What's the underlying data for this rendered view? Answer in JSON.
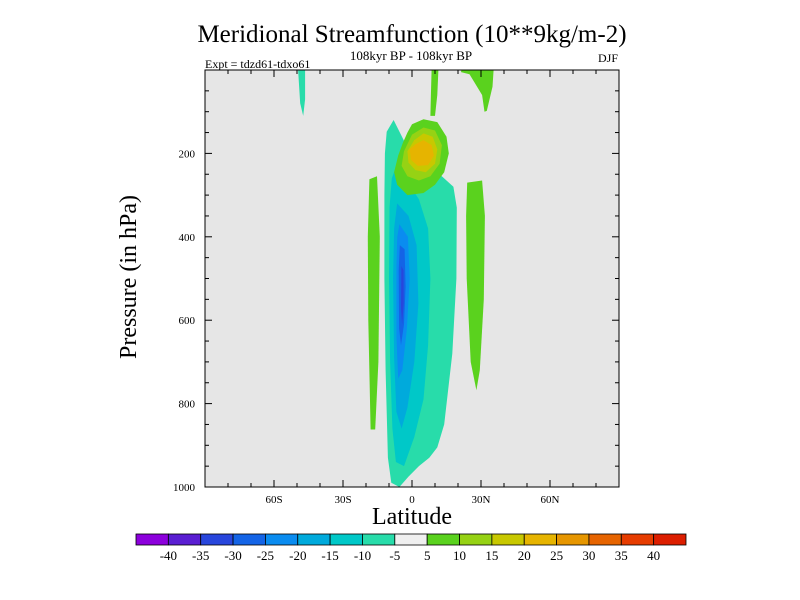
{
  "chart_data": {
    "type": "contour",
    "title": "Meridional Streamfunction (10**9kg/m-2)",
    "subtitle": "108kyr BP - 108kyr BP",
    "experiment_label": "Expt = tdzd61-tdxo61",
    "season": "DJF",
    "xlabel": "Latitude",
    "ylabel": "Pressure (in hPa)",
    "xlim": [
      -90,
      90
    ],
    "ylim": [
      1000,
      0
    ],
    "x_ticks": [
      {
        "value": -60,
        "label": "60S"
      },
      {
        "value": -30,
        "label": "30S"
      },
      {
        "value": 0,
        "label": "0"
      },
      {
        "value": 30,
        "label": "30N"
      },
      {
        "value": 60,
        "label": "60N"
      }
    ],
    "y_ticks": [
      {
        "value": 200,
        "label": "200"
      },
      {
        "value": 400,
        "label": "400"
      },
      {
        "value": 600,
        "label": "600"
      },
      {
        "value": 800,
        "label": "800"
      },
      {
        "value": 1000,
        "label": "1000"
      }
    ],
    "levels": [
      -40,
      -35,
      -30,
      -25,
      -20,
      -15,
      -10,
      -5,
      5,
      10,
      15,
      20,
      25,
      30,
      35,
      40
    ],
    "colorbar_labels": [
      "-40",
      "-35",
      "-30",
      "-25",
      "-20",
      "-15",
      "-10",
      "-5",
      "5",
      "10",
      "15",
      "20",
      "25",
      "30",
      "35",
      "40"
    ],
    "colorbar_colors": [
      "#8c00dc",
      "#5a1ed2",
      "#2846dc",
      "#1464e6",
      "#0a8cf0",
      "#00aadc",
      "#00c8c8",
      "#28dcaa",
      "#f0f0f0",
      "#5ad21e",
      "#96d214",
      "#c8c800",
      "#e6b400",
      "#e69600",
      "#e66400",
      "#e63c00",
      "#dc1e00"
    ],
    "background_color": "#e6e6e6",
    "features": [
      {
        "name": "southern-positive-cell",
        "value": 5,
        "lat_range": [
          -20,
          -15
        ],
        "pressure_range": [
          260,
          860
        ]
      },
      {
        "name": "tropical-negative-cell",
        "value": -25,
        "lat_center": -5,
        "pressure_range": [
          150,
          1000
        ],
        "min_value": -30
      },
      {
        "name": "upper-positive-cell",
        "value": 25,
        "lat_center": 3,
        "pressure_range": [
          120,
          300
        ],
        "max_value": 25
      },
      {
        "name": "northern-positive-cell-upper",
        "value": 5,
        "lat_range": [
          20,
          35
        ],
        "pressure_range": [
          0,
          60
        ]
      },
      {
        "name": "northern-positive-cell-lower",
        "value": 5,
        "lat_range": [
          23,
          30
        ],
        "pressure_range": [
          250,
          770
        ]
      },
      {
        "name": "polar-negative-cell",
        "value": -5,
        "lat_center": -48,
        "pressure_range": [
          0,
          110
        ]
      }
    ]
  }
}
